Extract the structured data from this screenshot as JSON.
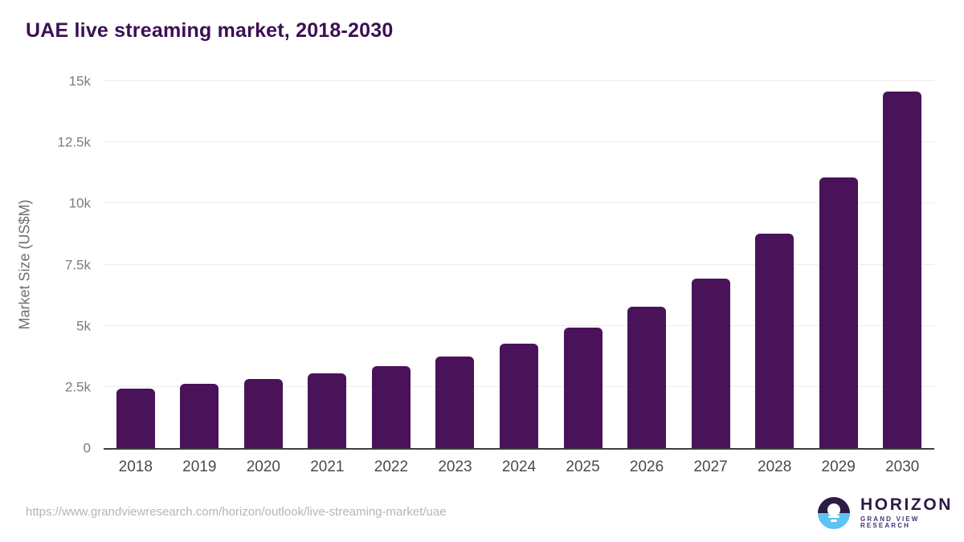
{
  "title": "UAE live streaming market, 2018-2030",
  "chart_data": {
    "type": "bar",
    "title": "UAE live streaming market, 2018-2030",
    "categories": [
      "2018",
      "2019",
      "2020",
      "2021",
      "2022",
      "2023",
      "2024",
      "2025",
      "2026",
      "2027",
      "2028",
      "2029",
      "2030"
    ],
    "values": [
      2440,
      2620,
      2820,
      3050,
      3350,
      3755,
      4255,
      4920,
      5790,
      6940,
      8755,
      11060,
      14580
    ],
    "xlabel": "",
    "ylabel": "Market Size (US$M)",
    "ylim": [
      0,
      15000
    ],
    "yticks": [
      0,
      2500,
      5000,
      7500,
      10000,
      12500,
      15000
    ],
    "ytick_labels": [
      "0",
      "2.5k",
      "5k",
      "7.5k",
      "10k",
      "12.5k",
      "15k"
    ],
    "grid": true,
    "legend": "none"
  },
  "colors": {
    "bar": "#4a1259",
    "title": "#3b1053",
    "gridline": "#ececec",
    "axis_line": "#3e3e3e",
    "logo_purple": "#2e1a47",
    "logo_blue": "#5cc3f2"
  },
  "footer": {
    "source_url": "https://www.grandviewresearch.com/horizon/outlook/live-streaming-market/uae",
    "logo": {
      "brand": "HORIZON",
      "subbrand": "GRAND VIEW RESEARCH"
    }
  }
}
